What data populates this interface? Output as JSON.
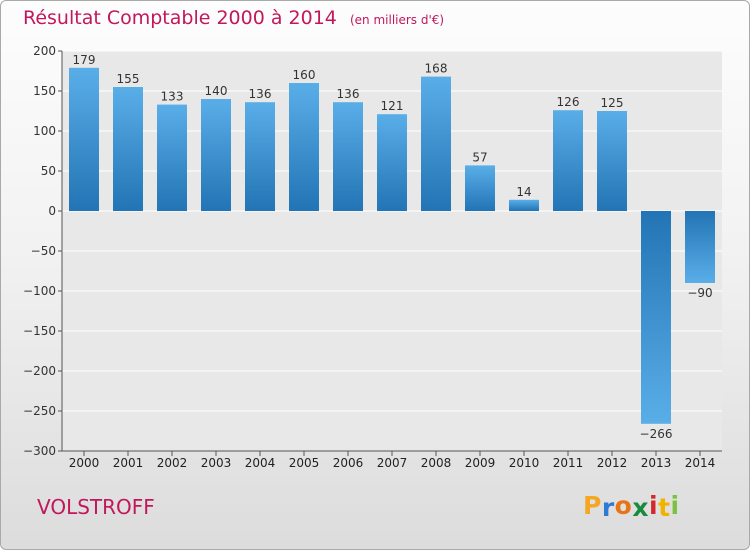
{
  "title": "Résultat Comptable 2000 à 2014",
  "unit_note": "(en milliers d'€)",
  "commune": "VOLSTROFF",
  "logo": {
    "letters": [
      "P",
      "r",
      "o",
      "x",
      "i",
      "t",
      "i"
    ],
    "colors": [
      "#f5a623",
      "#2e7bd6",
      "#e8741a",
      "#1a8a3e",
      "#d62828",
      "#f0b400",
      "#7cc242"
    ]
  },
  "colors": {
    "title": "#c2185b",
    "bar_light": "#5aaee8",
    "bar_dark": "#2274b4"
  },
  "chart_data": {
    "type": "bar",
    "title": "Résultat Comptable 2000 à 2014",
    "subtitle": "(en milliers d'€)",
    "categories": [
      "2000",
      "2001",
      "2002",
      "2003",
      "2004",
      "2005",
      "2006",
      "2007",
      "2008",
      "2009",
      "2010",
      "2011",
      "2012",
      "2013",
      "2014"
    ],
    "values": [
      179,
      155,
      133,
      140,
      136,
      160,
      136,
      121,
      168,
      57,
      14,
      126,
      125,
      -266,
      -90
    ],
    "ylim": [
      -300,
      200
    ],
    "yticks": [
      200,
      150,
      100,
      50,
      0,
      -50,
      -100,
      -150,
      -200,
      -250,
      -300
    ],
    "grid": true,
    "xlabel": "",
    "ylabel": ""
  }
}
